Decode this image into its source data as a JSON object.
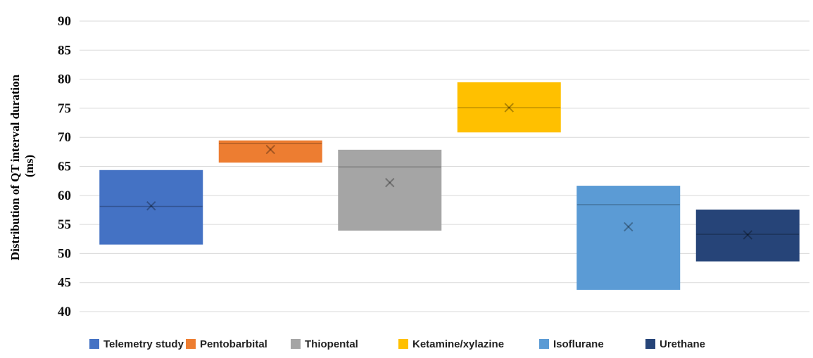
{
  "chart_data": {
    "type": "box",
    "title": "",
    "xlabel": "",
    "ylabel_line1": "Distribution of QT interval duration",
    "ylabel_line2": "(ms)",
    "ylim": [
      40,
      90
    ],
    "yticks": [
      90,
      85,
      80,
      75,
      70,
      65,
      60,
      55,
      50,
      45,
      40
    ],
    "grid": true,
    "legend_position": "bottom",
    "series": [
      {
        "name": "Telemetry study",
        "color": "#4472C4",
        "q1": 51.6,
        "median": 58.1,
        "q3": 64.3,
        "mean": 58.2
      },
      {
        "name": "Pentobarbital",
        "color": "#ED7D31",
        "q1": 65.7,
        "median": 68.9,
        "q3": 69.4,
        "mean": 67.9
      },
      {
        "name": "Thiopental",
        "color": "#A5A5A5",
        "q1": 54.0,
        "median": 64.9,
        "q3": 67.8,
        "mean": 62.2
      },
      {
        "name": "Ketamine/xylazine",
        "color": "#FFC000",
        "q1": 70.9,
        "median": 75.1,
        "q3": 79.4,
        "mean": 75.1
      },
      {
        "name": "Isoflurane",
        "color": "#5B9BD5",
        "q1": 43.8,
        "median": 58.4,
        "q3": 61.6,
        "mean": 54.6
      },
      {
        "name": "Urethane",
        "color": "#264478",
        "q1": 48.7,
        "median": 53.3,
        "q3": 57.5,
        "mean": 53.2
      }
    ]
  }
}
